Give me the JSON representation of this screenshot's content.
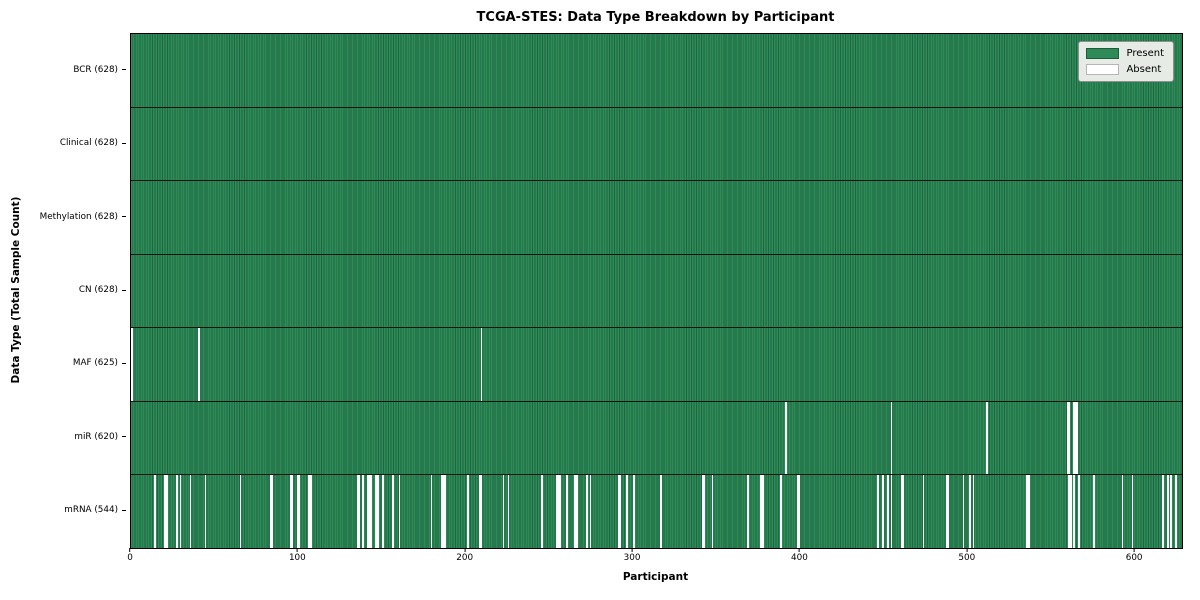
{
  "title": "TCGA-STES: Data Type Breakdown by Participant",
  "xlabel": "Participant",
  "ylabel": "Data Type (Total Sample Count)",
  "colors": {
    "present": "#2e8b57",
    "present_edge": "#1f6743",
    "absent": "#ffffff",
    "legend_background": "#e6ebe6",
    "legend_border": "#8f8f8f"
  },
  "chart_data": {
    "type": "heatmap",
    "title": "TCGA-STES: Data Type Breakdown by Participant",
    "xlabel": "Participant",
    "ylabel": "Data Type (Total Sample Count)",
    "n_participants": 628,
    "x_ticks": [
      0,
      100,
      200,
      300,
      400,
      500,
      600
    ],
    "legend": [
      {
        "label": "Present",
        "color": "#2e8b57"
      },
      {
        "label": "Absent",
        "color": "#ffffff"
      }
    ],
    "legend_position": "upper right",
    "grid": false,
    "rows": [
      {
        "name": "BCR",
        "label": "BCR (628)",
        "present_count": 628,
        "absent_participants": []
      },
      {
        "name": "Clinical",
        "label": "Clinical (628)",
        "present_count": 628,
        "absent_participants": []
      },
      {
        "name": "Methylation",
        "label": "Methylation (628)",
        "present_count": 628,
        "absent_participants": []
      },
      {
        "name": "CN",
        "label": "CN (628)",
        "present_count": 628,
        "absent_participants": []
      },
      {
        "name": "MAF",
        "label": "MAF (625)",
        "present_count": 625,
        "absent_participants": [
          0,
          40,
          209
        ]
      },
      {
        "name": "miR",
        "label": "miR (620)",
        "present_count": 620,
        "absent_participants": [
          391,
          454,
          511,
          559,
          560,
          563,
          564,
          565
        ]
      },
      {
        "name": "mRNA",
        "label": "mRNA (544)",
        "present_count": 544,
        "absent_participants": [
          14,
          20,
          21,
          27,
          29,
          35,
          44,
          65,
          83,
          84,
          95,
          96,
          99,
          100,
          106,
          107,
          135,
          136,
          138,
          141,
          142,
          143,
          146,
          147,
          150,
          156,
          160,
          179,
          185,
          186,
          187,
          201,
          208,
          209,
          222,
          225,
          245,
          254,
          255,
          256,
          260,
          265,
          266,
          272,
          274,
          291,
          292,
          296,
          300,
          316,
          341,
          342,
          347,
          368,
          376,
          377,
          388,
          398,
          399,
          446,
          449,
          452,
          454,
          460,
          461,
          473,
          487,
          488,
          497,
          501,
          503,
          535,
          536,
          560,
          561,
          563,
          566,
          575,
          592,
          598,
          616,
          619,
          621,
          624
        ]
      }
    ]
  }
}
